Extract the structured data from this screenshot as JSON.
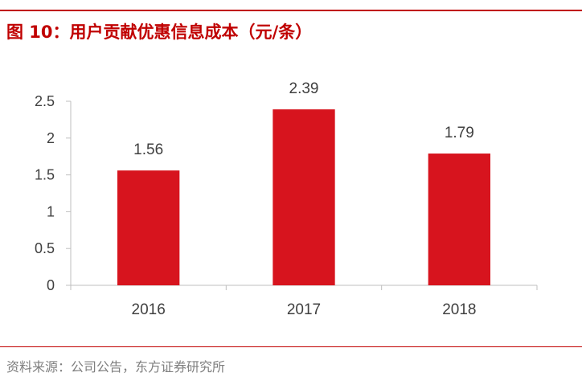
{
  "header": {
    "figure_label": "图 10：",
    "title": "用户贡献优惠信息成本（元/条）"
  },
  "footer": {
    "source": "资料来源：公司公告，东方证券研究所"
  },
  "colors": {
    "accent": "#c00000",
    "bar": "#d7141e",
    "axis": "#bfbfbf",
    "text": "#404040",
    "source_text": "#7f7f7f"
  },
  "chart_data": {
    "type": "bar",
    "categories": [
      "2016",
      "2017",
      "2018"
    ],
    "values": [
      1.56,
      2.39,
      1.79
    ],
    "value_labels": [
      "1.56",
      "2.39",
      "1.79"
    ],
    "y_ticks": [
      "0",
      "0.5",
      "1",
      "1.5",
      "2",
      "2.5"
    ],
    "ylim": [
      0,
      2.5
    ],
    "grid": false,
    "legend": "none",
    "title": "",
    "xlabel": "",
    "ylabel": ""
  }
}
